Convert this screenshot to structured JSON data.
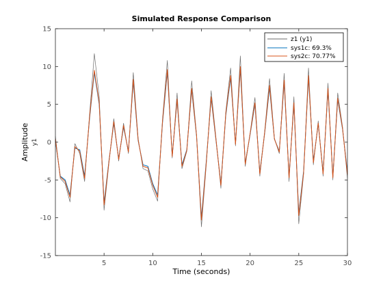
{
  "chart_data": {
    "type": "line",
    "title": "Simulated Response Comparison",
    "xlabel": "Time (seconds)",
    "ylabel": "Amplitude",
    "ylabel_channel": "y1",
    "xlim": [
      0,
      30
    ],
    "ylim": [
      -15,
      15
    ],
    "xticks": [
      5,
      10,
      15,
      20,
      25,
      30
    ],
    "yticks": [
      -15,
      -10,
      -5,
      0,
      5,
      10,
      15
    ],
    "grid": false,
    "legend_position": "top-right",
    "x": [
      0,
      0.5,
      1,
      1.5,
      2,
      2.5,
      3,
      3.5,
      4,
      4.5,
      5,
      5.5,
      6,
      6.5,
      7,
      7.5,
      8,
      8.5,
      9,
      9.5,
      10,
      10.5,
      11,
      11.5,
      12,
      12.5,
      13,
      13.5,
      14,
      14.5,
      15,
      15.5,
      16,
      16.5,
      17,
      17.5,
      18,
      18.5,
      19,
      19.5,
      20,
      20.5,
      21,
      21.5,
      22,
      22.5,
      23,
      23.5,
      24,
      24.5,
      25,
      25.5,
      26,
      26.5,
      27,
      27.5,
      28,
      28.5,
      29,
      29.5,
      30
    ],
    "series": [
      {
        "name": "z1 (y1)",
        "color": "#6b6b6b",
        "values": [
          0.8,
          -4.8,
          -5.5,
          -7.9,
          -0.2,
          -1.5,
          -5.2,
          3.5,
          11.7,
          6.0,
          -9.0,
          -2.8,
          3.1,
          -2.5,
          2.5,
          -1.5,
          9.2,
          0.5,
          -3.5,
          -3.8,
          -6.2,
          -7.8,
          3.0,
          10.8,
          -2.1,
          6.5,
          -3.5,
          -1.2,
          8.1,
          1.0,
          -11.2,
          -3.0,
          6.8,
          0.5,
          -6.1,
          4.0,
          9.8,
          -0.5,
          11.4,
          -3.2,
          1.2,
          5.9,
          -4.5,
          1.5,
          8.4,
          0.5,
          -1.5,
          9.1,
          -5.2,
          6.0,
          -10.8,
          -4.2,
          9.8,
          -3.0,
          2.8,
          -4.5,
          7.8,
          -5.0,
          6.5,
          2.0,
          -4.8
        ]
      },
      {
        "name": "sys1c: 69.3%",
        "color": "#0072bd",
        "values": [
          0.2,
          -4.5,
          -5.0,
          -7.0,
          -0.8,
          -1.0,
          -4.5,
          3.0,
          9.2,
          5.0,
          -8.0,
          -2.5,
          2.5,
          -2.2,
          2.0,
          -1.2,
          8.0,
          0.2,
          -3.0,
          -3.2,
          -5.5,
          -7.0,
          2.5,
          9.3,
          -1.8,
          5.5,
          -3.0,
          -1.0,
          6.9,
          0.8,
          -10.0,
          -2.5,
          5.8,
          0.2,
          -5.5,
          3.5,
          8.5,
          -0.2,
          9.7,
          -2.8,
          1.0,
          5.0,
          -4.0,
          1.2,
          7.2,
          0.4,
          -1.2,
          7.9,
          -4.5,
          5.0,
          -9.4,
          -3.8,
          8.5,
          -2.5,
          2.4,
          -4.0,
          6.9,
          -4.5,
          5.6,
          1.7,
          -4.0
        ]
      },
      {
        "name": "sys2c: 70.77%",
        "color": "#d95319",
        "values": [
          0.4,
          -4.6,
          -5.2,
          -7.3,
          -0.6,
          -1.2,
          -4.8,
          3.2,
          9.5,
          5.2,
          -8.3,
          -2.6,
          2.7,
          -2.3,
          2.2,
          -1.3,
          8.3,
          0.3,
          -3.2,
          -3.4,
          -5.7,
          -7.3,
          2.7,
          9.6,
          -1.9,
          5.7,
          -3.2,
          -1.1,
          7.1,
          0.9,
          -10.3,
          -2.7,
          6.0,
          0.3,
          -5.7,
          3.7,
          8.8,
          -0.3,
          10.0,
          -2.9,
          1.1,
          5.2,
          -4.2,
          1.3,
          7.5,
          0.4,
          -1.3,
          8.2,
          -4.7,
          5.2,
          -9.7,
          -4.0,
          8.8,
          -2.7,
          2.5,
          -4.2,
          7.1,
          -4.7,
          5.8,
          1.8,
          -4.3
        ]
      }
    ]
  }
}
